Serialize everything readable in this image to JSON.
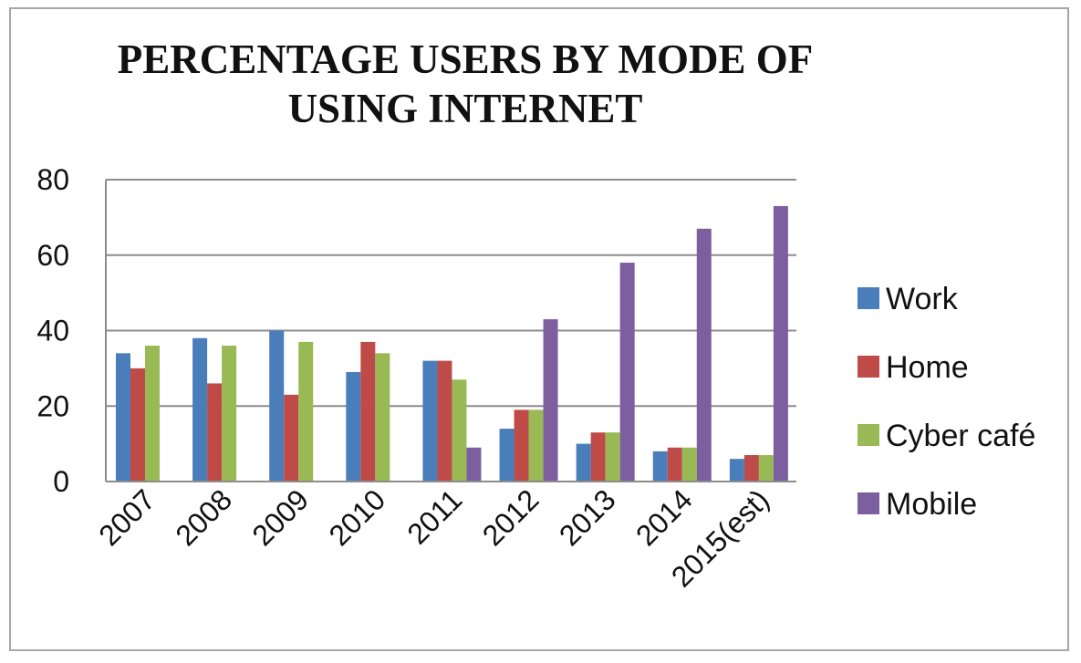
{
  "chart_data": {
    "type": "bar",
    "title_lines": [
      "PERCENTAGE USERS BY MODE OF",
      "USING INTERNET"
    ],
    "categories": [
      "2007",
      "2008",
      "2009",
      "2010",
      "2011",
      "2012",
      "2013",
      "2014",
      "2015(est)"
    ],
    "series": [
      {
        "name": "Work",
        "color": "#4a7ebb",
        "values": [
          34,
          38,
          40,
          29,
          32,
          14,
          10,
          8,
          6
        ]
      },
      {
        "name": "Home",
        "color": "#be4b48",
        "values": [
          30,
          26,
          23,
          37,
          32,
          19,
          13,
          9,
          7
        ]
      },
      {
        "name": "Cyber café",
        "color": "#98b954",
        "values": [
          36,
          36,
          37,
          34,
          27,
          19,
          13,
          9,
          7
        ]
      },
      {
        "name": "Mobile",
        "color": "#7d5fa0",
        "values": [
          0,
          0,
          0,
          0,
          9,
          43,
          58,
          67,
          73
        ]
      }
    ],
    "ylim": [
      0,
      80
    ],
    "yticks": [
      0,
      20,
      40,
      60,
      80
    ],
    "grid": true,
    "legend_position": "right",
    "xlabel": "",
    "ylabel": ""
  }
}
